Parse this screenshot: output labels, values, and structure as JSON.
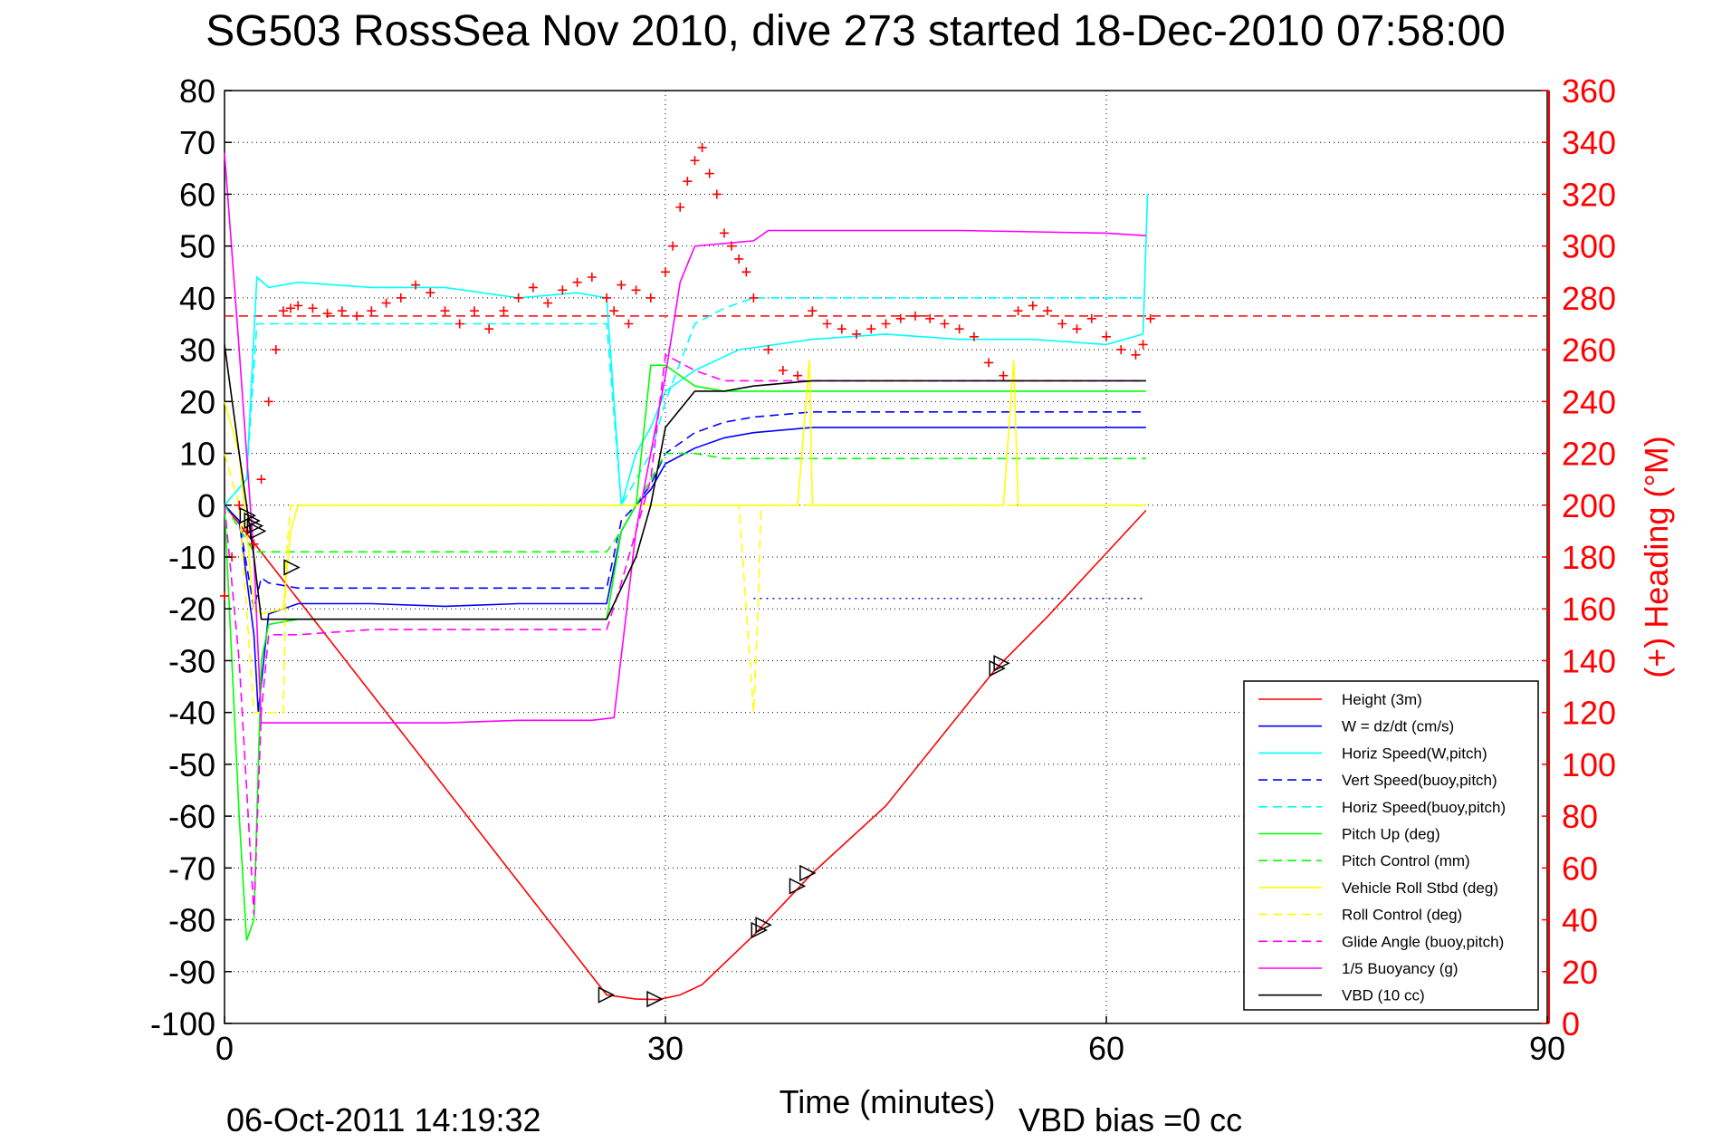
{
  "chart_data": {
    "type": "line",
    "title": "SG503 RossSea Nov 2010, dive 273 started 18-Dec-2010 07:58:00",
    "xlabel": "Time (minutes)",
    "ylabel_right": "(+) Heading (°M)",
    "timestamp": "06-Oct-2011 14:19:32",
    "footnote": "VBD bias =0 cc",
    "xlim": [
      0,
      90
    ],
    "ylim": [
      -100,
      80
    ],
    "y2lim": [
      0,
      360
    ],
    "xticks": [
      0,
      30,
      60,
      90
    ],
    "yticks": [
      -100,
      -90,
      -80,
      -70,
      -60,
      -50,
      -40,
      -30,
      -20,
      -10,
      0,
      10,
      20,
      30,
      40,
      50,
      60,
      70,
      80
    ],
    "y2ticks": [
      0,
      20,
      40,
      60,
      80,
      100,
      120,
      140,
      160,
      180,
      200,
      220,
      240,
      260,
      280,
      300,
      320,
      340,
      360
    ],
    "grid": true,
    "legend_position": "bottom-right",
    "series": [
      {
        "name": "Height (3m)",
        "color": "#ff0000",
        "dash": "solid",
        "x": [
          0,
          26,
          28,
          29.5,
          31,
          32.5,
          36,
          40,
          45,
          52.5,
          56,
          62.7
        ],
        "y": [
          0,
          -94.5,
          -95.3,
          -95.4,
          -94.5,
          -92.5,
          -83,
          -71,
          -58,
          -31.5,
          -21.5,
          -1
        ]
      },
      {
        "name": "W = dz/dt (cm/s)",
        "color": "#0000ff",
        "dash": "solid",
        "x": [
          0,
          1,
          2,
          2.3,
          3,
          5,
          10,
          15,
          20,
          24,
          26,
          27,
          28,
          29,
          30,
          32,
          34,
          36,
          40,
          45,
          50,
          55,
          60,
          62.7
        ],
        "y": [
          0,
          -3,
          -25,
          -40,
          -21,
          -19,
          -19,
          -19.5,
          -19,
          -19,
          -19,
          -5,
          0,
          3,
          8,
          11,
          13,
          14,
          15,
          15,
          15,
          15,
          15,
          15
        ]
      },
      {
        "name": "Horiz Speed(W,pitch)",
        "color": "#00ffff",
        "dash": "solid",
        "x": [
          0,
          1.5,
          2.2,
          3,
          5,
          10,
          15,
          20,
          24,
          26,
          27,
          28,
          29,
          30,
          32,
          35,
          40,
          45,
          50,
          55,
          60,
          62.5,
          62.8
        ],
        "y": [
          0,
          5,
          44,
          42,
          43,
          42,
          42,
          40,
          41,
          40,
          0,
          10,
          15,
          22,
          26,
          30,
          32,
          33,
          32,
          32,
          31,
          33,
          60
        ]
      },
      {
        "name": "Vert Speed(buoy,pitch)",
        "color": "#0000ff",
        "dash": "dashed",
        "x": [
          0,
          1,
          2,
          2.5,
          3,
          5,
          10,
          15,
          20,
          24,
          26,
          27,
          28,
          29,
          30,
          32,
          34,
          36,
          40,
          45,
          50,
          55,
          60,
          62.7
        ],
        "y": [
          0,
          -3,
          -20,
          -14,
          -15,
          -16,
          -16,
          -16,
          -16,
          -16,
          -16,
          -3,
          0,
          4,
          10,
          14,
          16,
          17,
          18,
          18,
          18,
          18,
          18,
          18
        ]
      },
      {
        "name": "Horiz Speed(buoy,pitch)",
        "color": "#00ffff",
        "dash": "dashed",
        "x": [
          0,
          1.5,
          2.2,
          3,
          5,
          10,
          15,
          20,
          24,
          26,
          27,
          28,
          29,
          30,
          32,
          34,
          36,
          40,
          45,
          50,
          55,
          60,
          62.7
        ],
        "y": [
          0,
          5,
          35,
          35,
          35,
          35,
          35,
          35,
          35,
          35,
          0,
          5,
          10,
          20,
          35,
          38,
          40,
          40,
          40,
          40,
          40,
          40,
          40
        ]
      },
      {
        "name": "Pitch Up (deg)",
        "color": "#00ff00",
        "dash": "solid",
        "x": [
          0,
          1,
          1.5,
          2,
          2.5,
          3,
          5,
          10,
          15,
          20,
          24,
          26,
          27,
          28,
          29,
          30,
          32,
          34,
          36,
          40,
          45,
          50,
          55,
          60,
          62.7
        ],
        "y": [
          0,
          -60,
          -84,
          -80,
          -30,
          -23,
          -22,
          -22,
          -22,
          -22,
          -22,
          -22,
          -5,
          0,
          27,
          27,
          23,
          22,
          22,
          22,
          22,
          22,
          22,
          22,
          22
        ]
      },
      {
        "name": "Pitch Control (mm)",
        "color": "#00ff00",
        "dash": "dashed",
        "x": [
          0,
          2,
          2.5,
          5,
          10,
          15,
          20,
          24,
          26,
          27,
          28,
          29,
          30,
          32,
          34,
          36,
          40,
          45,
          50,
          55,
          60,
          62.7
        ],
        "y": [
          0,
          -9,
          -9,
          -9,
          -9,
          -9,
          -9,
          -9,
          -9,
          -5,
          0,
          5,
          10,
          10,
          9,
          9,
          9,
          9,
          9,
          9,
          9,
          9
        ]
      },
      {
        "name": "Vehicle Roll Stbd (deg)",
        "color": "#ffff00",
        "dash": "solid",
        "x": [
          0,
          1,
          2,
          2.5,
          4,
          4.5,
          5,
          10,
          15,
          20,
          25,
          30,
          35,
          38,
          39,
          39.8,
          40,
          45,
          50,
          52,
          53,
          53.7,
          54,
          60,
          62.7
        ],
        "y": [
          20,
          10,
          -20,
          -21,
          -20,
          -5,
          0,
          0,
          0,
          0,
          0,
          0,
          0,
          0,
          0,
          28,
          0,
          0,
          0,
          0,
          0,
          28,
          0,
          0,
          0
        ]
      },
      {
        "name": "Roll Control (deg)",
        "color": "#ffff00",
        "dash": "dashed",
        "x": [
          0,
          1,
          2,
          4,
          4.2,
          4.5,
          5,
          10,
          20,
          30,
          35,
          35.5,
          36,
          36.3,
          36.5,
          40,
          50,
          60,
          62.7
        ],
        "y": [
          10,
          0,
          -40,
          -40,
          -10,
          0,
          0,
          0,
          0,
          0,
          0,
          -20,
          -40,
          -20,
          0,
          0,
          0,
          0,
          0
        ]
      },
      {
        "name": "Glide Angle (buoy,pitch)",
        "color": "#ff00ff",
        "dash": "dashed",
        "x": [
          0,
          1,
          2,
          2.5,
          3,
          5,
          10,
          15,
          20,
          24,
          26,
          27,
          28,
          29,
          30,
          32,
          34,
          36,
          40,
          45,
          50,
          55,
          60,
          62.7
        ],
        "y": [
          0,
          -30,
          -79,
          -40,
          -25,
          -25,
          -24,
          -24,
          -24,
          -24,
          -24,
          -15,
          -5,
          5,
          29,
          26,
          24,
          24,
          24,
          24,
          24,
          24,
          24,
          24
        ]
      },
      {
        "name": "1/5 Buoyancy (g)",
        "color": "#ff00ff",
        "dash": "solid",
        "x": [
          0,
          1,
          2,
          2.5,
          5,
          10,
          15,
          20,
          25,
          26.5,
          28,
          30,
          31,
          32,
          36,
          37,
          40,
          50,
          60,
          62.7
        ],
        "y": [
          68,
          30,
          -10,
          -42,
          -42,
          -42,
          -42,
          -41.5,
          -41.5,
          -41,
          -5,
          25,
          43,
          50,
          51,
          53,
          53,
          53,
          52.5,
          52
        ]
      },
      {
        "name": "VBD (10 cc)",
        "color": "#000000",
        "dash": "solid",
        "x": [
          0,
          1,
          2,
          2.5,
          5,
          10,
          15,
          20,
          24,
          26,
          28,
          29,
          30,
          32,
          34,
          36,
          40,
          50,
          60,
          62.7
        ],
        "y": [
          31,
          10,
          -10,
          -22,
          -22,
          -22,
          -22,
          -22,
          -22,
          -22,
          -10,
          0,
          15,
          22,
          22,
          23,
          24,
          24,
          24,
          24
        ]
      }
    ],
    "heading_series": {
      "name": "(+) Heading",
      "color": "#ff0000",
      "axis": "right",
      "x": [
        0,
        0.5,
        1,
        1.5,
        2,
        2.5,
        3,
        3.5,
        4,
        4.5,
        5,
        6,
        7,
        8,
        9,
        10,
        11,
        12,
        13,
        14,
        15,
        16,
        17,
        18,
        19,
        20,
        21,
        22,
        23,
        24,
        25,
        26,
        26.5,
        27,
        27.5,
        28,
        29,
        30,
        30.5,
        31,
        31.5,
        32,
        32.5,
        33,
        33.5,
        34,
        34.5,
        35,
        35.5,
        36,
        37,
        38,
        39,
        40,
        41,
        42,
        43,
        44,
        45,
        46,
        47,
        48,
        49,
        50,
        51,
        52,
        53,
        54,
        55,
        56,
        57,
        58,
        59,
        60,
        61,
        62,
        62.5,
        63
      ],
      "y": [
        165,
        180,
        200,
        190,
        185,
        210,
        240,
        260,
        275,
        276,
        277,
        276,
        274,
        275,
        273,
        275,
        278,
        280,
        285,
        282,
        275,
        270,
        275,
        268,
        275,
        280,
        284,
        278,
        283,
        286,
        288,
        280,
        275,
        285,
        270,
        283,
        280,
        290,
        300,
        315,
        325,
        333,
        338,
        328,
        320,
        305,
        300,
        295,
        290,
        280,
        260,
        252,
        250,
        275,
        270,
        268,
        266,
        268,
        270,
        272,
        273,
        272,
        270,
        268,
        265,
        255,
        250,
        275,
        277,
        275,
        270,
        268,
        272,
        265,
        260,
        258,
        262,
        272
      ]
    },
    "heading_reference": {
      "y": 273,
      "color": "#ff0000",
      "dash": "dashed",
      "axis": "right"
    },
    "vert_reference": {
      "y": -18,
      "color": "#0000ff",
      "dash": "dotted",
      "x_range": [
        36,
        62.7
      ]
    },
    "markers": {
      "symbol": "triangle",
      "color": "#000000",
      "x": [
        1.5,
        1.8,
        2.0,
        2.2,
        4.5,
        25.9,
        29.2,
        36.3,
        36.6,
        38.9,
        39.6,
        52.5,
        52.8
      ],
      "y": [
        -2,
        -3,
        -4,
        -5,
        -12,
        -94.5,
        -95.3,
        -82,
        -81,
        -73.5,
        -71,
        -31.5,
        -30.5
      ]
    }
  }
}
